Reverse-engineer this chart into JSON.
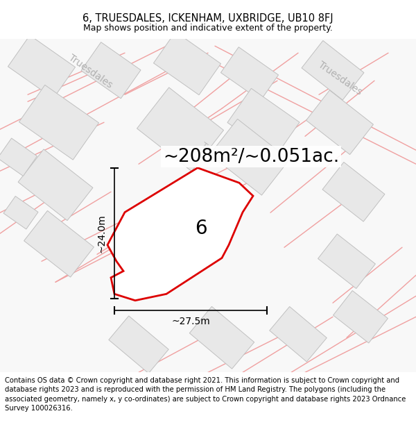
{
  "title_line1": "6, TRUESDALES, ICKENHAM, UXBRIDGE, UB10 8FJ",
  "title_line2": "Map shows position and indicative extent of the property.",
  "footer_text": "Contains OS data © Crown copyright and database right 2021. This information is subject to Crown copyright and database rights 2023 and is reproduced with the permission of HM Land Registry. The polygons (including the associated geometry, namely x, y co-ordinates) are subject to Crown copyright and database rights 2023 Ordnance Survey 100026316.",
  "area_label": "~208m²/~0.051ac.",
  "property_label": "6",
  "dim_width": "~27.5m",
  "dim_height": "~24.0m",
  "map_bg": "#f5f5f5",
  "property_fill": "#f0f0f0",
  "property_edge": "#dd0000",
  "road_color": "#f0a0a0",
  "building_fill": "#e8e8e8",
  "building_edge": "#c0c0c0",
  "road_outline_color": "#d08080",
  "title_fontsize": 10.5,
  "subtitle_fontsize": 9,
  "footer_fontsize": 7.2,
  "area_fontsize": 19,
  "property_number_fontsize": 20,
  "dim_fontsize": 10,
  "street_label_fontsize": 10,
  "street_label_color": "#aaaaaa"
}
